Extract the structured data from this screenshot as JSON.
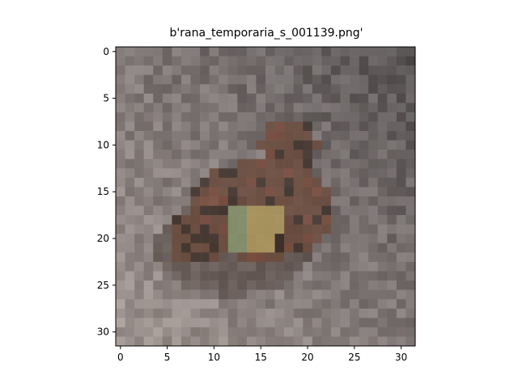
{
  "figure": {
    "title": "b'rana_temporaria_s_001139.png'"
  },
  "image": {
    "grid_size": [
      32,
      32
    ],
    "description": "low-resolution pixelated photo of a brown frog on grey gravel/rock",
    "palette": {
      "background_light": "#9f9590",
      "background_mid": "#7d7574",
      "background_dark": "#4e4a4b",
      "frog_brown": "#6b4a3a",
      "frog_dark": "#3e3029",
      "frog_yellow": "#b7a060",
      "frog_green": "#8a9a70",
      "frog_red": "#7a4a3a"
    }
  },
  "axes": {
    "x_ticks": [
      "0",
      "5",
      "10",
      "15",
      "20",
      "25",
      "30"
    ],
    "y_ticks": [
      "0",
      "5",
      "10",
      "15",
      "20",
      "25",
      "30"
    ]
  }
}
